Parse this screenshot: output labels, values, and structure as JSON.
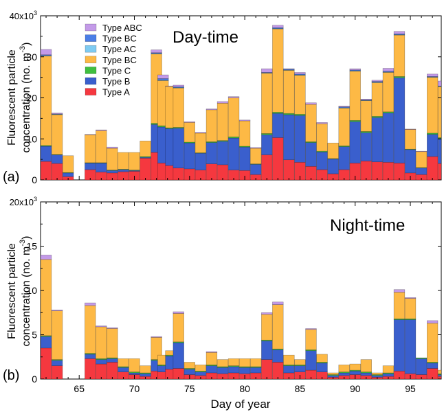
{
  "figure": {
    "xlabel": "Day of year",
    "ylabel_line1": "Fluorescent particle",
    "ylabel_line2": "concentration (no. m",
    "ylabel_sup": "-3",
    "ylabel_close": ")"
  },
  "chart_data": [
    {
      "type": "bar",
      "stacked": true,
      "panel_label": "(a)",
      "title": "Day-time",
      "ylabel": "Fluorescent particle concentration (no. m-3)",
      "xlabel": "",
      "xlim": [
        61.5,
        97.8
      ],
      "ylim": [
        0,
        40
      ],
      "y_multiplier_label": "x10",
      "y_multiplier_sup": "3",
      "yticks": [
        0,
        10,
        20,
        30,
        40
      ],
      "xticks": [
        65,
        70,
        75,
        80,
        85,
        90,
        95
      ],
      "legend_position": "top-left",
      "colors": {
        "A": "#f5383f",
        "B": "#3a5fcd",
        "C": "#3fbf3f",
        "BC": "#fdb945",
        "AC": "#7ecbf2",
        "BC2": "#4a7ee6",
        "ABC": "#c39ae8"
      },
      "legend": [
        {
          "label": "Type ABC",
          "key": "ABC"
        },
        {
          "label": "Type BC",
          "key": "BC2"
        },
        {
          "label": "Type AC",
          "key": "AC"
        },
        {
          "label": "Type BC",
          "key": "BC"
        },
        {
          "label": "Type C",
          "key": "C"
        },
        {
          "label": "Type B",
          "key": "B"
        },
        {
          "label": "Type A",
          "key": "A"
        }
      ],
      "stack_order": [
        "A",
        "B",
        "C",
        "BC",
        "AC",
        "BC2",
        "ABC"
      ],
      "days": [
        62,
        63,
        64,
        66,
        67,
        68,
        69,
        70,
        71,
        72,
        72.6,
        73.3,
        74,
        75,
        76,
        77,
        78,
        79,
        80,
        81,
        82,
        83,
        84,
        85,
        86,
        87,
        88,
        89,
        90,
        91,
        92,
        93,
        94,
        95,
        96,
        97,
        98
      ],
      "bars": [
        {
          "A": 4.5,
          "B": 3.7,
          "C": 0.2,
          "BC": 21.8,
          "AC": 0.1,
          "BC2": 0.2,
          "ABC": 1.3
        },
        {
          "A": 4.0,
          "B": 2.1,
          "C": 0.1,
          "BC": 9.7,
          "AC": 0.1,
          "BC2": 0.1,
          "ABC": 0.2
        },
        {
          "A": 0.8,
          "B": 0.9,
          "C": 0.1,
          "BC": 4.1,
          "AC": 0,
          "BC2": 0,
          "ABC": 0
        },
        {
          "A": 2.5,
          "B": 1.6,
          "C": 0.1,
          "BC": 6.8,
          "AC": 0,
          "BC2": 0,
          "ABC": 0.1
        },
        {
          "A": 1.9,
          "B": 2.2,
          "C": 0.1,
          "BC": 7.8,
          "AC": 0,
          "BC2": 0,
          "ABC": 0.2
        },
        {
          "A": 1.7,
          "B": 0.6,
          "C": 0.1,
          "BC": 5.3,
          "AC": 0,
          "BC2": 0,
          "ABC": 0.3
        },
        {
          "A": 2.0,
          "B": 0.5,
          "C": 0.1,
          "BC": 4.1,
          "AC": 0,
          "BC2": 0,
          "ABC": 0
        },
        {
          "A": 2.1,
          "B": 0.2,
          "C": 0.1,
          "BC": 4.3,
          "AC": 0,
          "BC2": 0,
          "ABC": 0
        },
        {
          "A": 5.3,
          "B": 0.2,
          "C": 0.2,
          "BC": 3.8,
          "AC": 0,
          "BC2": 0,
          "ABC": 0
        },
        {
          "A": 6.7,
          "B": 6.8,
          "C": 0.3,
          "BC": 16.9,
          "AC": 0.1,
          "BC2": 0.2,
          "ABC": 0.7
        },
        {
          "A": 4.1,
          "B": 8.8,
          "C": 0.3,
          "BC": 11.0,
          "AC": 0.1,
          "BC2": 0.4,
          "ABC": 0.9
        },
        {
          "A": 3.5,
          "B": 9.0,
          "C": 0.2,
          "BC": 10.1,
          "AC": 0,
          "BC2": 0,
          "ABC": 0.1
        },
        {
          "A": 2.9,
          "B": 9.7,
          "C": 0.2,
          "BC": 9.6,
          "AC": 0.1,
          "BC2": 0.2,
          "ABC": 0.4
        },
        {
          "A": 2.7,
          "B": 6.3,
          "C": 0.2,
          "BC": 4.8,
          "AC": 0,
          "BC2": 0,
          "ABC": 0.2
        },
        {
          "A": 2.4,
          "B": 4.1,
          "C": 0.1,
          "BC": 4.8,
          "AC": 0,
          "BC2": 0,
          "ABC": 0.2
        },
        {
          "A": 3.9,
          "B": 5.2,
          "C": 0.2,
          "BC": 7.8,
          "AC": 0,
          "BC2": 0,
          "ABC": 0.2
        },
        {
          "A": 3.7,
          "B": 5.7,
          "C": 0.2,
          "BC": 9.1,
          "AC": 0,
          "BC2": 0,
          "ABC": 0.4
        },
        {
          "A": 2.4,
          "B": 7.8,
          "C": 0.3,
          "BC": 9.5,
          "AC": 0,
          "BC2": 0,
          "ABC": 0.3
        },
        {
          "A": 2.3,
          "B": 5.7,
          "C": 0.2,
          "BC": 6.2,
          "AC": 0,
          "BC2": 0,
          "ABC": 0.2
        },
        {
          "A": 1.3,
          "B": 2.5,
          "C": 0.1,
          "BC": 3.8,
          "AC": 0,
          "BC2": 0,
          "ABC": 0.2
        },
        {
          "A": 6.1,
          "B": 4.9,
          "C": 0.3,
          "BC": 14.7,
          "AC": 0.1,
          "BC2": 0.1,
          "ABC": 0.9
        },
        {
          "A": 10.3,
          "B": 5.9,
          "C": 0.3,
          "BC": 20.3,
          "AC": 0.1,
          "BC2": 0.2,
          "ABC": 0.6
        },
        {
          "A": 4.9,
          "B": 11.0,
          "C": 0.3,
          "BC": 10.5,
          "AC": 0.1,
          "BC2": 0.2,
          "ABC": 0.1
        },
        {
          "A": 4.3,
          "B": 11.4,
          "C": 0.3,
          "BC": 9.5,
          "AC": 0.1,
          "BC2": 0.2,
          "ABC": 0.4
        },
        {
          "A": 3.3,
          "B": 5.8,
          "C": 0.2,
          "BC": 9.1,
          "AC": 0,
          "BC2": 0,
          "ABC": 0.4
        },
        {
          "A": 2.5,
          "B": 4.3,
          "C": 0.2,
          "BC": 6.7,
          "AC": 0,
          "BC2": 0,
          "ABC": 0.3
        },
        {
          "A": 1.5,
          "B": 3.6,
          "C": 0.1,
          "BC": 3.8,
          "AC": 0,
          "BC2": 0,
          "ABC": 0
        },
        {
          "A": 2.5,
          "B": 5.6,
          "C": 0.2,
          "BC": 9.2,
          "AC": 0.1,
          "BC2": 0.2,
          "ABC": 0.2
        },
        {
          "A": 4.1,
          "B": 10.1,
          "C": 0.3,
          "BC": 12.0,
          "AC": 0.1,
          "BC2": 0.2,
          "ABC": 0.3
        },
        {
          "A": 4.6,
          "B": 6.9,
          "C": 0.3,
          "BC": 7.5,
          "AC": 0.1,
          "BC2": 0.1,
          "ABC": 0.2
        },
        {
          "A": 4.4,
          "B": 10.8,
          "C": 0.3,
          "BC": 8.2,
          "AC": 0.1,
          "BC2": 0.2,
          "ABC": 0.3
        },
        {
          "A": 4.3,
          "B": 12.0,
          "C": 0.3,
          "BC": 9.6,
          "AC": 0.1,
          "BC2": 0.2,
          "ABC": 0.7
        },
        {
          "A": 4.1,
          "B": 20.8,
          "C": 0.3,
          "BC": 10.1,
          "AC": 0.1,
          "BC2": 0.2,
          "ABC": 0.6
        },
        {
          "A": 1.7,
          "B": 5.7,
          "C": 0.1,
          "BC": 4.8,
          "AC": 0,
          "BC2": 0,
          "ABC": 0.1
        },
        {
          "A": 1.3,
          "B": 1.6,
          "C": 0.1,
          "BC": 3.9,
          "AC": 0,
          "BC2": 0,
          "ABC": 0.1
        },
        {
          "A": 5.7,
          "B": 5.4,
          "C": 0.3,
          "BC": 13.6,
          "AC": 0.1,
          "BC2": 0.1,
          "ABC": 0.6
        },
        {
          "A": 4.0,
          "B": 6.1,
          "C": 0.2,
          "BC": 12.4,
          "AC": 0.1,
          "BC2": 0.1,
          "ABC": 1.2
        }
      ]
    },
    {
      "type": "bar",
      "stacked": true,
      "panel_label": "(b)",
      "title": "Night-time",
      "ylabel": "Fluorescent particle concentration (no. m-3)",
      "xlabel": "Day of year",
      "xlim": [
        61.5,
        97.8
      ],
      "ylim": [
        0,
        20
      ],
      "y_multiplier_label": "20x10",
      "y_multiplier_sup": "3",
      "yticks": [
        0,
        5,
        10,
        15
      ],
      "xticks": [
        65,
        70,
        75,
        80,
        85,
        90,
        95
      ],
      "stack_order": [
        "A",
        "B",
        "C",
        "BC",
        "AC",
        "BC2",
        "ABC"
      ],
      "days": [
        62,
        63,
        64,
        66,
        67,
        68,
        69,
        70,
        71,
        72,
        72.6,
        73.3,
        74,
        75,
        76,
        77,
        78,
        79,
        80,
        81,
        82,
        83,
        84,
        85,
        86,
        87,
        88,
        89,
        90,
        91,
        92,
        93,
        94,
        95,
        96,
        97,
        98
      ],
      "bars": [
        {
          "A": 3.5,
          "B": 1.3,
          "C": 0.1,
          "BC": 8.6,
          "AC": 0,
          "BC2": 0,
          "ABC": 0.5
        },
        {
          "A": 1.5,
          "B": 0.6,
          "C": 0.1,
          "BC": 5.5,
          "AC": 0,
          "BC2": 0,
          "ABC": 0.1
        },
        {
          "A": 0,
          "B": 0,
          "C": 0,
          "BC": 0,
          "AC": 0,
          "BC2": 0,
          "ABC": 0
        },
        {
          "A": 2.3,
          "B": 0.5,
          "C": 0.1,
          "BC": 5.4,
          "AC": 0,
          "BC2": 0,
          "ABC": 0.3
        },
        {
          "A": 1.7,
          "B": 0.5,
          "C": 0.1,
          "BC": 3.6,
          "AC": 0,
          "BC2": 0,
          "ABC": 0.1
        },
        {
          "A": 1.9,
          "B": 0.4,
          "C": 0.1,
          "BC": 3.3,
          "AC": 0,
          "BC2": 0,
          "ABC": 0.1
        },
        {
          "A": 0.8,
          "B": 0.5,
          "C": 0.1,
          "BC": 0.9,
          "AC": 0,
          "BC2": 0,
          "ABC": 0
        },
        {
          "A": 0.5,
          "B": 0.2,
          "C": 0.1,
          "BC": 1.5,
          "AC": 0,
          "BC2": 0,
          "ABC": 0
        },
        {
          "A": 0.3,
          "B": 0.3,
          "C": 0.1,
          "BC": 0.8,
          "AC": 0,
          "BC2": 0,
          "ABC": 0
        },
        {
          "A": 0.9,
          "B": 1.2,
          "C": 0.1,
          "BC": 2.5,
          "AC": 0,
          "BC2": 0,
          "ABC": 0.1
        },
        {
          "A": 0.8,
          "B": 0.7,
          "C": 0.1,
          "BC": 1.1,
          "AC": 0,
          "BC2": 0,
          "ABC": 0
        },
        {
          "A": 1.1,
          "B": 1.5,
          "C": 0.1,
          "BC": 0.5,
          "AC": 0,
          "BC2": 0,
          "ABC": 0
        },
        {
          "A": 1.2,
          "B": 2.9,
          "C": 0.1,
          "BC": 3.2,
          "AC": 0,
          "BC2": 0,
          "ABC": 0.2
        },
        {
          "A": 0.5,
          "B": 0.6,
          "C": 0.1,
          "BC": 0.7,
          "AC": 0,
          "BC2": 0,
          "ABC": 0
        },
        {
          "A": 0.4,
          "B": 0.4,
          "C": 0.1,
          "BC": 0.7,
          "AC": 0,
          "BC2": 0,
          "ABC": 0
        },
        {
          "A": 0.7,
          "B": 0.8,
          "C": 0.1,
          "BC": 1.4,
          "AC": 0,
          "BC2": 0,
          "ABC": 0.1
        },
        {
          "A": 0.6,
          "B": 0.7,
          "C": 0.1,
          "BC": 0.8,
          "AC": 0,
          "BC2": 0,
          "ABC": 0
        },
        {
          "A": 0.7,
          "B": 0.7,
          "C": 0.1,
          "BC": 0.8,
          "AC": 0,
          "BC2": 0,
          "ABC": 0
        },
        {
          "A": 0.6,
          "B": 0.7,
          "C": 0.1,
          "BC": 0.9,
          "AC": 0,
          "BC2": 0,
          "ABC": 0
        },
        {
          "A": 0.7,
          "B": 0.6,
          "C": 0.1,
          "BC": 0.9,
          "AC": 0,
          "BC2": 0,
          "ABC": 0
        },
        {
          "A": 2.2,
          "B": 2.1,
          "C": 0.1,
          "BC": 2.9,
          "AC": 0,
          "BC2": 0,
          "ABC": 0.2
        },
        {
          "A": 1.9,
          "B": 1.4,
          "C": 0.1,
          "BC": 5.0,
          "AC": 0,
          "BC2": 0,
          "ABC": 0.3
        },
        {
          "A": 0.7,
          "B": 0.8,
          "C": 0.1,
          "BC": 1.1,
          "AC": 0,
          "BC2": 0,
          "ABC": 0
        },
        {
          "A": 0.8,
          "B": 0.7,
          "C": 0.1,
          "BC": 0.6,
          "AC": 0,
          "BC2": 0,
          "ABC": 0
        },
        {
          "A": 1.0,
          "B": 2.2,
          "C": 0.1,
          "BC": 2.3,
          "AC": 0,
          "BC2": 0,
          "ABC": 0.1
        },
        {
          "A": 0.8,
          "B": 1.0,
          "C": 0.1,
          "BC": 0.9,
          "AC": 0,
          "BC2": 0,
          "ABC": 0
        },
        {
          "A": 0.2,
          "B": 0.2,
          "C": 0.1,
          "BC": 0.2,
          "AC": 0,
          "BC2": 0,
          "ABC": 0
        },
        {
          "A": 0.4,
          "B": 0.3,
          "C": 0.1,
          "BC": 0.8,
          "AC": 0,
          "BC2": 0,
          "ABC": 0
        },
        {
          "A": 0.5,
          "B": 0.4,
          "C": 0.1,
          "BC": 0.7,
          "AC": 0,
          "BC2": 0,
          "ABC": 0
        },
        {
          "A": 0.4,
          "B": 0.3,
          "C": 0.1,
          "BC": 1.4,
          "AC": 0,
          "BC2": 0,
          "ABC": 0
        },
        {
          "A": 0.2,
          "B": 0.2,
          "C": 0.1,
          "BC": 0.2,
          "AC": 0,
          "BC2": 0,
          "ABC": 0
        },
        {
          "A": 0.3,
          "B": 0.3,
          "C": 0.1,
          "BC": 0.8,
          "AC": 0,
          "BC2": 0,
          "ABC": 0
        },
        {
          "A": 0.9,
          "B": 5.8,
          "C": 0.1,
          "BC": 3.0,
          "AC": 0,
          "BC2": 0,
          "ABC": 0.3
        },
        {
          "A": 0.6,
          "B": 6.1,
          "C": 0.1,
          "BC": 2.3,
          "AC": 0,
          "BC2": 0,
          "ABC": 0.1
        },
        {
          "A": 0.5,
          "B": 1.8,
          "C": 0.1,
          "BC": 0,
          "AC": 0,
          "BC2": 0,
          "ABC": 0
        },
        {
          "A": 1.2,
          "B": 0.6,
          "C": 0.1,
          "BC": 4.4,
          "AC": 0,
          "BC2": 0,
          "ABC": 0.3
        },
        {
          "A": 0.3,
          "B": 0.2,
          "C": 0.1,
          "BC": 0.4,
          "AC": 0,
          "BC2": 0,
          "ABC": 0
        }
      ]
    }
  ]
}
